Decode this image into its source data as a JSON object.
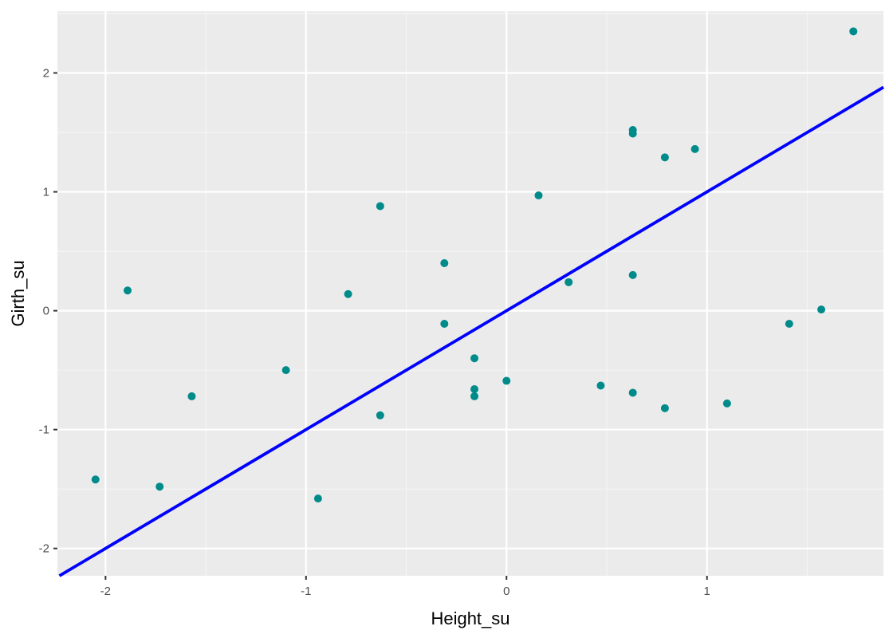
{
  "chart_data": {
    "type": "scatter",
    "xlabel": "Height_su",
    "ylabel": "Girth_su",
    "xlim": [
      -2.24,
      1.88
    ],
    "ylim": [
      -2.23,
      2.52
    ],
    "x_ticks": [
      -2,
      -1,
      0,
      1
    ],
    "y_ticks": [
      -2,
      -1,
      0,
      1,
      2
    ],
    "grid": true,
    "colors": {
      "panel_background": "#ebebeb",
      "grid_major": "#ffffff",
      "grid_minor": "#f5f5f5",
      "points": "#008b8b",
      "fit_line": "#0000ff"
    },
    "fit_line": {
      "intercept": 0,
      "slope": 1
    },
    "points": [
      {
        "x": -2.05,
        "y": -1.42
      },
      {
        "x": -1.89,
        "y": 0.17
      },
      {
        "x": -1.73,
        "y": -1.48
      },
      {
        "x": -1.57,
        "y": -0.72
      },
      {
        "x": -1.1,
        "y": -0.5
      },
      {
        "x": -0.94,
        "y": -1.58
      },
      {
        "x": -0.79,
        "y": 0.14
      },
      {
        "x": -0.63,
        "y": 0.88
      },
      {
        "x": -0.63,
        "y": -0.88
      },
      {
        "x": -0.31,
        "y": 0.4
      },
      {
        "x": -0.31,
        "y": -0.11
      },
      {
        "x": -0.16,
        "y": -0.4
      },
      {
        "x": -0.16,
        "y": -0.66
      },
      {
        "x": -0.16,
        "y": -0.72
      },
      {
        "x": 0.0,
        "y": -0.59
      },
      {
        "x": 0.16,
        "y": 0.97
      },
      {
        "x": 0.31,
        "y": 0.24
      },
      {
        "x": 0.47,
        "y": -0.63
      },
      {
        "x": 0.63,
        "y": 1.52
      },
      {
        "x": 0.63,
        "y": 1.49
      },
      {
        "x": 0.63,
        "y": 0.3
      },
      {
        "x": 0.63,
        "y": -0.69
      },
      {
        "x": 0.79,
        "y": 1.29
      },
      {
        "x": 0.79,
        "y": -0.82
      },
      {
        "x": 0.94,
        "y": 1.36
      },
      {
        "x": 1.1,
        "y": -0.78
      },
      {
        "x": 1.41,
        "y": -0.11
      },
      {
        "x": 1.57,
        "y": 0.01
      },
      {
        "x": 1.73,
        "y": 2.35
      }
    ]
  }
}
